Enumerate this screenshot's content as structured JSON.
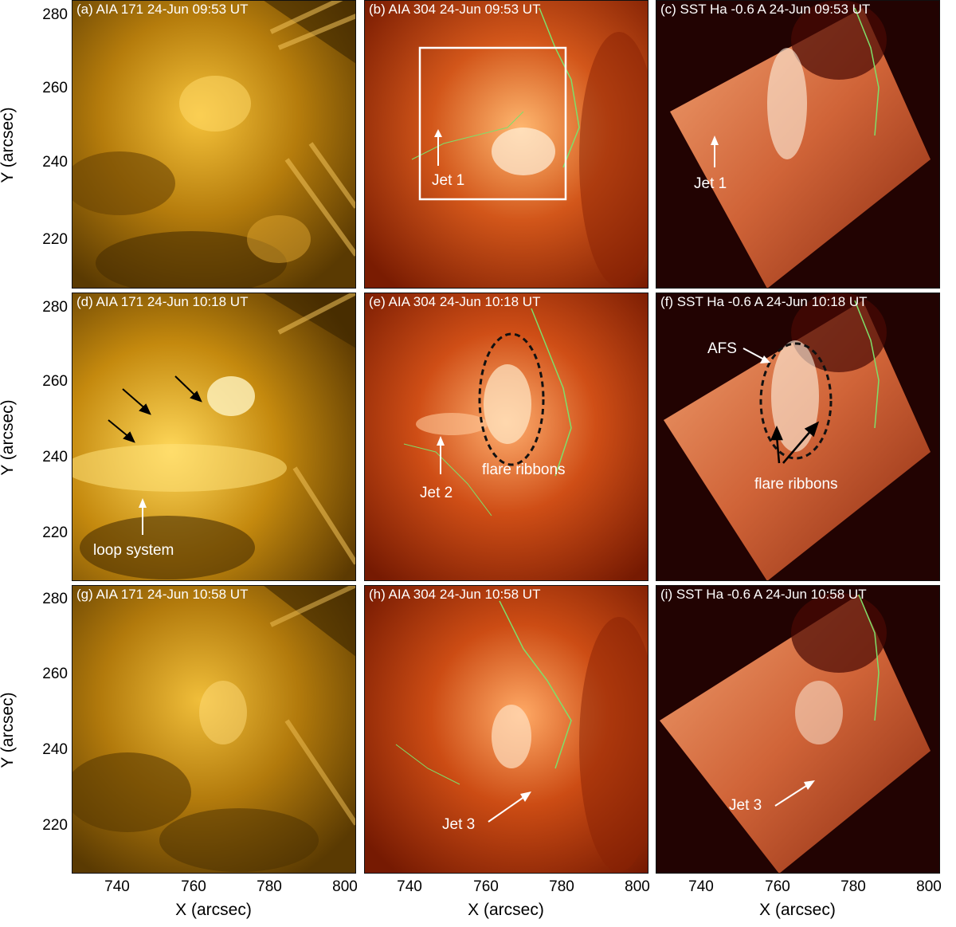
{
  "figure": {
    "y_tick_labels": [
      "280",
      "260",
      "240",
      "220"
    ],
    "x_tick_labels": [
      "740",
      "760",
      "780",
      "800"
    ],
    "y_axis_label": "Y (arcsec)",
    "x_axis_label": "X (arcsec)"
  },
  "panels": [
    {
      "id": "a",
      "label": "(a) AIA 171 24-Jun 09:53 UT",
      "type": "aia171",
      "annotations": []
    },
    {
      "id": "b",
      "label": "(b) AIA 304 24-Jun 09:53 UT",
      "type": "aia304",
      "annotations": [
        {
          "text": "Jet 1"
        }
      ]
    },
    {
      "id": "c",
      "label": "(c) SST Ha -0.6 A 24-Jun 09:53 UT",
      "type": "sst",
      "annotations": [
        {
          "text": "Jet 1"
        }
      ]
    },
    {
      "id": "d",
      "label": "(d) AIA 171 24-Jun 10:18 UT",
      "type": "aia171",
      "annotations": [
        {
          "text": "loop system"
        }
      ]
    },
    {
      "id": "e",
      "label": "(e) AIA 304 24-Jun 10:18 UT",
      "type": "aia304",
      "annotations": [
        {
          "text": "Jet 2"
        },
        {
          "text": "flare ribbons"
        }
      ]
    },
    {
      "id": "f",
      "label": "(f) SST Ha -0.6 A 24-Jun 10:18 UT",
      "type": "sst",
      "annotations": [
        {
          "text": "AFS"
        },
        {
          "text": "flare ribbons"
        }
      ]
    },
    {
      "id": "g",
      "label": "(g) AIA 171 24-Jun 10:58 UT",
      "type": "aia171",
      "annotations": []
    },
    {
      "id": "h",
      "label": "(h) AIA 304 24-Jun 10:58 UT",
      "type": "aia304",
      "annotations": [
        {
          "text": "Jet 3"
        }
      ]
    },
    {
      "id": "i",
      "label": "(i) SST Ha -0.6 A 24-Jun 10:58 UT",
      "type": "sst",
      "annotations": [
        {
          "text": "Jet 3"
        }
      ]
    }
  ],
  "colors": {
    "aia171": "#b07a00",
    "aia304": "#b03a08",
    "sst": "#d0643a",
    "contour_green": "#7ee06a",
    "annotation_white": "#ffffff"
  }
}
